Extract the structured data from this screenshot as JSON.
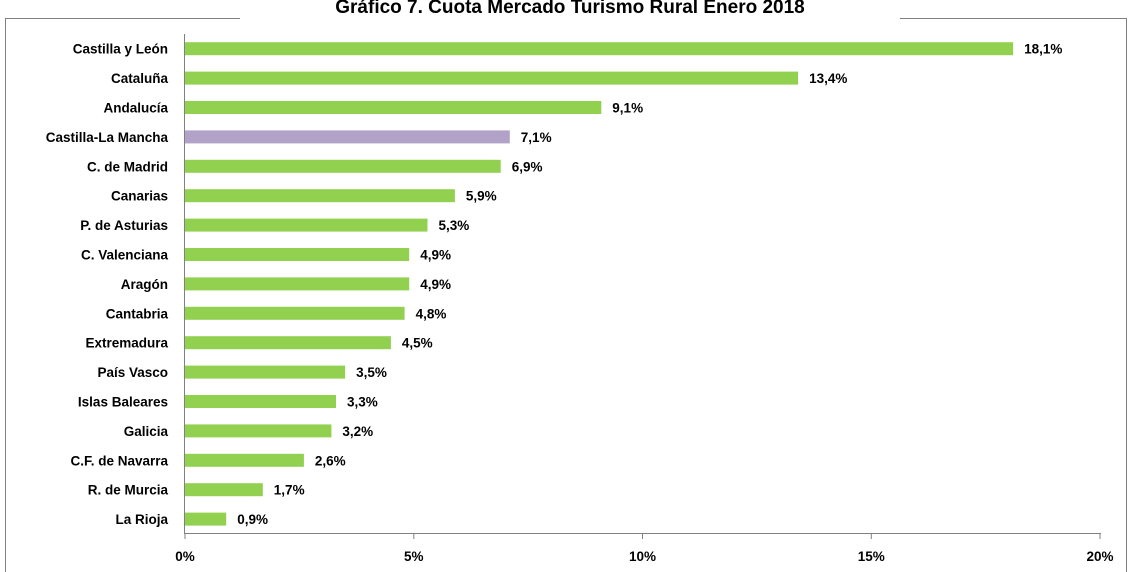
{
  "chart_data": {
    "type": "bar",
    "orientation": "horizontal",
    "title": "Gráfico 7. Cuota Mercado Turismo Rural Enero 2018",
    "categories": [
      "Castilla y León",
      "Cataluña",
      "Andalucía",
      "Castilla-La Mancha",
      "C. de Madrid",
      "Canarias",
      "P. de Asturias",
      "C. Valenciana",
      "Aragón",
      "Cantabria",
      "Extremadura",
      "País Vasco",
      "Islas Baleares",
      "Galicia",
      "C.F. de Navarra",
      "R. de Murcia",
      "La Rioja"
    ],
    "values": [
      18.1,
      13.4,
      9.1,
      7.1,
      6.9,
      5.9,
      5.3,
      4.9,
      4.9,
      4.8,
      4.5,
      3.5,
      3.3,
      3.2,
      2.6,
      1.7,
      0.9
    ],
    "value_labels": [
      "18,1%",
      "13,4%",
      "9,1%",
      "7,1%",
      "6,9%",
      "5,9%",
      "5,3%",
      "4,9%",
      "4,9%",
      "4,8%",
      "4,5%",
      "3,5%",
      "3,3%",
      "3,2%",
      "2,6%",
      "1,7%",
      "0,9%"
    ],
    "highlight_category": "Castilla-La Mancha",
    "x_ticks": [
      0,
      5,
      10,
      15,
      20
    ],
    "x_tick_labels": [
      "0%",
      "5%",
      "10%",
      "15%",
      "20%"
    ],
    "xlim": [
      0,
      20
    ],
    "xlabel": "",
    "ylabel": "",
    "grid": false,
    "legend": "none",
    "colors": {
      "bar": "#92d050",
      "highlight": "#b3a2c7",
      "axis": "#808080",
      "frame": "#808080"
    }
  }
}
